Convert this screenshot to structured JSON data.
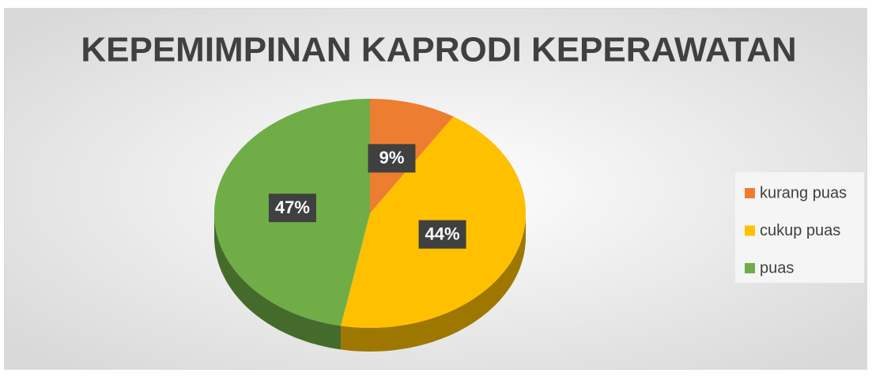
{
  "chart_data": {
    "type": "pie",
    "title": "KEPEMIMPINAN KAPRODI KEPERAWATAN",
    "categories": [
      "kurang puas",
      "cukup puas",
      "puas"
    ],
    "values": [
      9,
      44,
      47
    ],
    "value_labels": [
      "9%",
      "44%",
      "47%"
    ],
    "colors": [
      "#ED7D31",
      "#FFC000",
      "#70AD47"
    ],
    "legend": "right"
  }
}
